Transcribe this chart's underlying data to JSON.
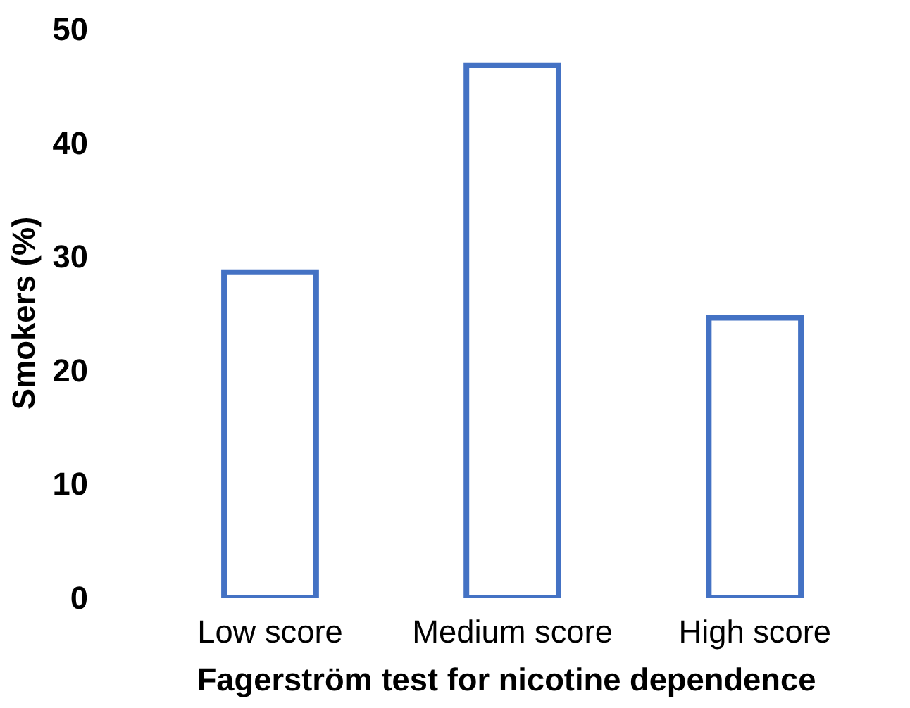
{
  "chart_data": {
    "type": "bar",
    "xlabel": "Fagerström test for nicotine dependence",
    "ylabel": "Smokers (%)",
    "categories": [
      "Low score",
      "Medium score",
      "High score"
    ],
    "values": [
      28.6,
      46.8,
      24.6
    ],
    "color": "#4472c4",
    "ylim": [
      0,
      50
    ],
    "yticks": [
      0,
      10,
      20,
      30,
      40,
      50
    ],
    "grid": false
  }
}
